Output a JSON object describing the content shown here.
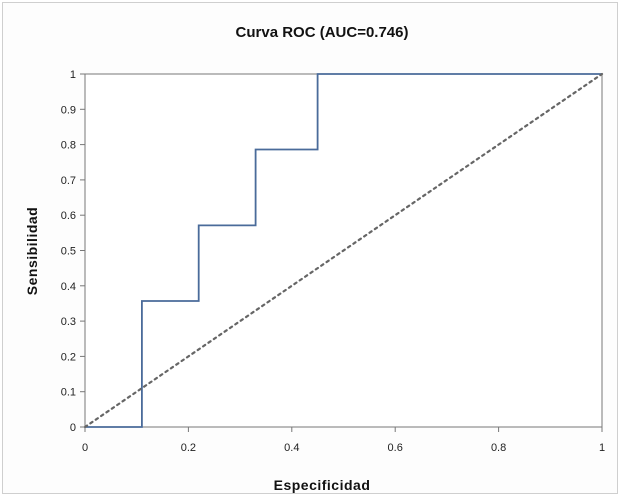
{
  "chart_data": {
    "type": "line",
    "title": "Curva ROC (AUC=0.746)",
    "xlabel": "Especificidad",
    "ylabel": "Sensibilidad",
    "xlim": [
      0,
      1
    ],
    "ylim": [
      0,
      1
    ],
    "grid": false,
    "x_ticks": [
      "0",
      "0.2",
      "0.4",
      "0.6",
      "0.8",
      "1"
    ],
    "y_ticks": [
      "0",
      "0.1",
      "0.2",
      "0.3",
      "0.4",
      "0.5",
      "0.6",
      "0.7",
      "0.8",
      "0.9",
      "1"
    ],
    "series": [
      {
        "color": "#4a6b9a",
        "style": "step",
        "x": [
          0,
          0.11,
          0.11,
          0.22,
          0.22,
          0.33,
          0.33,
          0.45,
          0.45,
          1
        ],
        "y": [
          0,
          0,
          0.357,
          0.357,
          0.571,
          0.571,
          0.786,
          0.786,
          1,
          1
        ]
      },
      {
        "color": "#666666",
        "style": "dotted",
        "x": [
          0,
          1
        ],
        "y": [
          0,
          1
        ]
      }
    ]
  }
}
